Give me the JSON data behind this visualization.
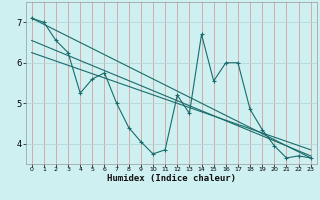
{
  "title": "",
  "xlabel": "Humidex (Indice chaleur)",
  "background_color": "#cff0f0",
  "grid_color_v": "#d4a0a0",
  "grid_color_h": "#b8d8d8",
  "line_color": "#1a6b6b",
  "xlim": [
    -0.5,
    23.5
  ],
  "ylim": [
    3.5,
    7.5
  ],
  "xticks": [
    0,
    1,
    2,
    3,
    4,
    5,
    6,
    7,
    8,
    9,
    10,
    11,
    12,
    13,
    14,
    15,
    16,
    17,
    18,
    19,
    20,
    21,
    22,
    23
  ],
  "yticks": [
    4,
    5,
    6,
    7
  ],
  "series1_x": [
    0,
    1,
    2,
    3,
    4,
    5,
    6,
    7,
    8,
    9,
    10,
    11,
    12,
    13,
    14,
    15,
    16,
    17,
    18,
    19,
    20,
    21,
    22,
    23
  ],
  "series1_y": [
    7.1,
    7.0,
    6.55,
    6.25,
    5.25,
    5.6,
    5.75,
    5.0,
    4.4,
    4.05,
    3.75,
    3.85,
    5.2,
    4.75,
    6.7,
    5.55,
    6.0,
    6.0,
    4.85,
    4.35,
    3.95,
    3.65,
    3.7,
    3.65
  ],
  "series2_x": [
    0,
    23
  ],
  "series2_y": [
    7.1,
    3.65
  ],
  "series3_x": [
    0,
    23
  ],
  "series3_y": [
    6.55,
    3.7
  ],
  "series4_x": [
    0,
    23
  ],
  "series4_y": [
    6.25,
    3.85
  ]
}
